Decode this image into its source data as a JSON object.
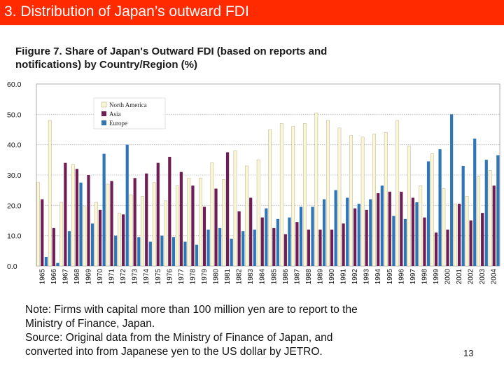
{
  "slide": {
    "title": "3. Distribution of Japan’s outward FDI",
    "figure_title_line1": "Fiigure 7. Share of Japan's Outward FDI (based on reports and",
    "figure_title_line2": "notifications) by Country/Region (%)",
    "note_line1": "Note: Firms with capital more than 100 million yen are to report to the",
    "note_line2": "Ministry of Finance, Japan.",
    "note_line3": "Source: Original data from the Ministry of Finance of Japan, and",
    "note_line4": "converted into from Japanese yen to the US dollar by JETRO.",
    "page_number": "13",
    "colors": {
      "title_bar": "#ff2a00",
      "north_america": "#fbf7d6",
      "asia": "#6e1d55",
      "europe": "#2f76b9"
    }
  },
  "chart_data": {
    "type": "bar",
    "title": "Share of Japan's Outward FDI by Country/Region (%)",
    "categories": [
      "1965",
      "1966",
      "1967",
      "1968",
      "1969",
      "1970",
      "1971",
      "1972",
      "1973",
      "1974",
      "1975",
      "1976",
      "1977",
      "1978",
      "1979",
      "1980",
      "1981",
      "1982",
      "1983",
      "1984",
      "1985",
      "1986",
      "1987",
      "1988",
      "1989",
      "1990",
      "1991",
      "1992",
      "1993",
      "1994",
      "1995",
      "1996",
      "1997",
      "1998",
      "1999",
      "2000",
      "2001",
      "2002",
      "2003",
      "2004"
    ],
    "y_tick_labels": [
      "0.0",
      "10.0",
      "20.0",
      "30.0",
      "40.0",
      "50.0",
      "60.0"
    ],
    "ylim": [
      0,
      60
    ],
    "legend_position": "top-left",
    "series": [
      {
        "name": "North America",
        "values": [
          27.5,
          48,
          21,
          33.5,
          19.5,
          21,
          27,
          17.5,
          23.5,
          23,
          27.5,
          21.5,
          26.5,
          29,
          29,
          34,
          28.5,
          38,
          33,
          35,
          45,
          47,
          46,
          47,
          50.5,
          48,
          45.5,
          43,
          42.5,
          43.5,
          44,
          48,
          39.5,
          26.5,
          37,
          25.5,
          20.5,
          23,
          29.5,
          31.5
        ]
      },
      {
        "name": "Asia",
        "values": [
          22,
          12.5,
          34,
          32,
          30,
          18.5,
          28,
          17,
          29,
          30.5,
          34,
          36,
          31,
          26.5,
          19.5,
          25.5,
          37.5,
          18,
          22.5,
          16,
          12.5,
          10.5,
          14.5,
          12,
          12,
          12,
          14,
          19,
          18.5,
          24,
          24.5,
          24.5,
          22.5,
          16,
          11,
          12,
          20.5,
          15,
          17.5,
          26.5
        ]
      },
      {
        "name": "Europe",
        "values": [
          3,
          1,
          11.5,
          27.5,
          14,
          37,
          10,
          40,
          9.5,
          8,
          10,
          9.5,
          8,
          7,
          12,
          12.5,
          9,
          11.5,
          12,
          19,
          15.5,
          16,
          19.5,
          19.5,
          22,
          25,
          22.5,
          20.5,
          22,
          26.5,
          16.5,
          15.5,
          21,
          34.5,
          38.5,
          50,
          33,
          42,
          35,
          36.5
        ]
      }
    ]
  }
}
